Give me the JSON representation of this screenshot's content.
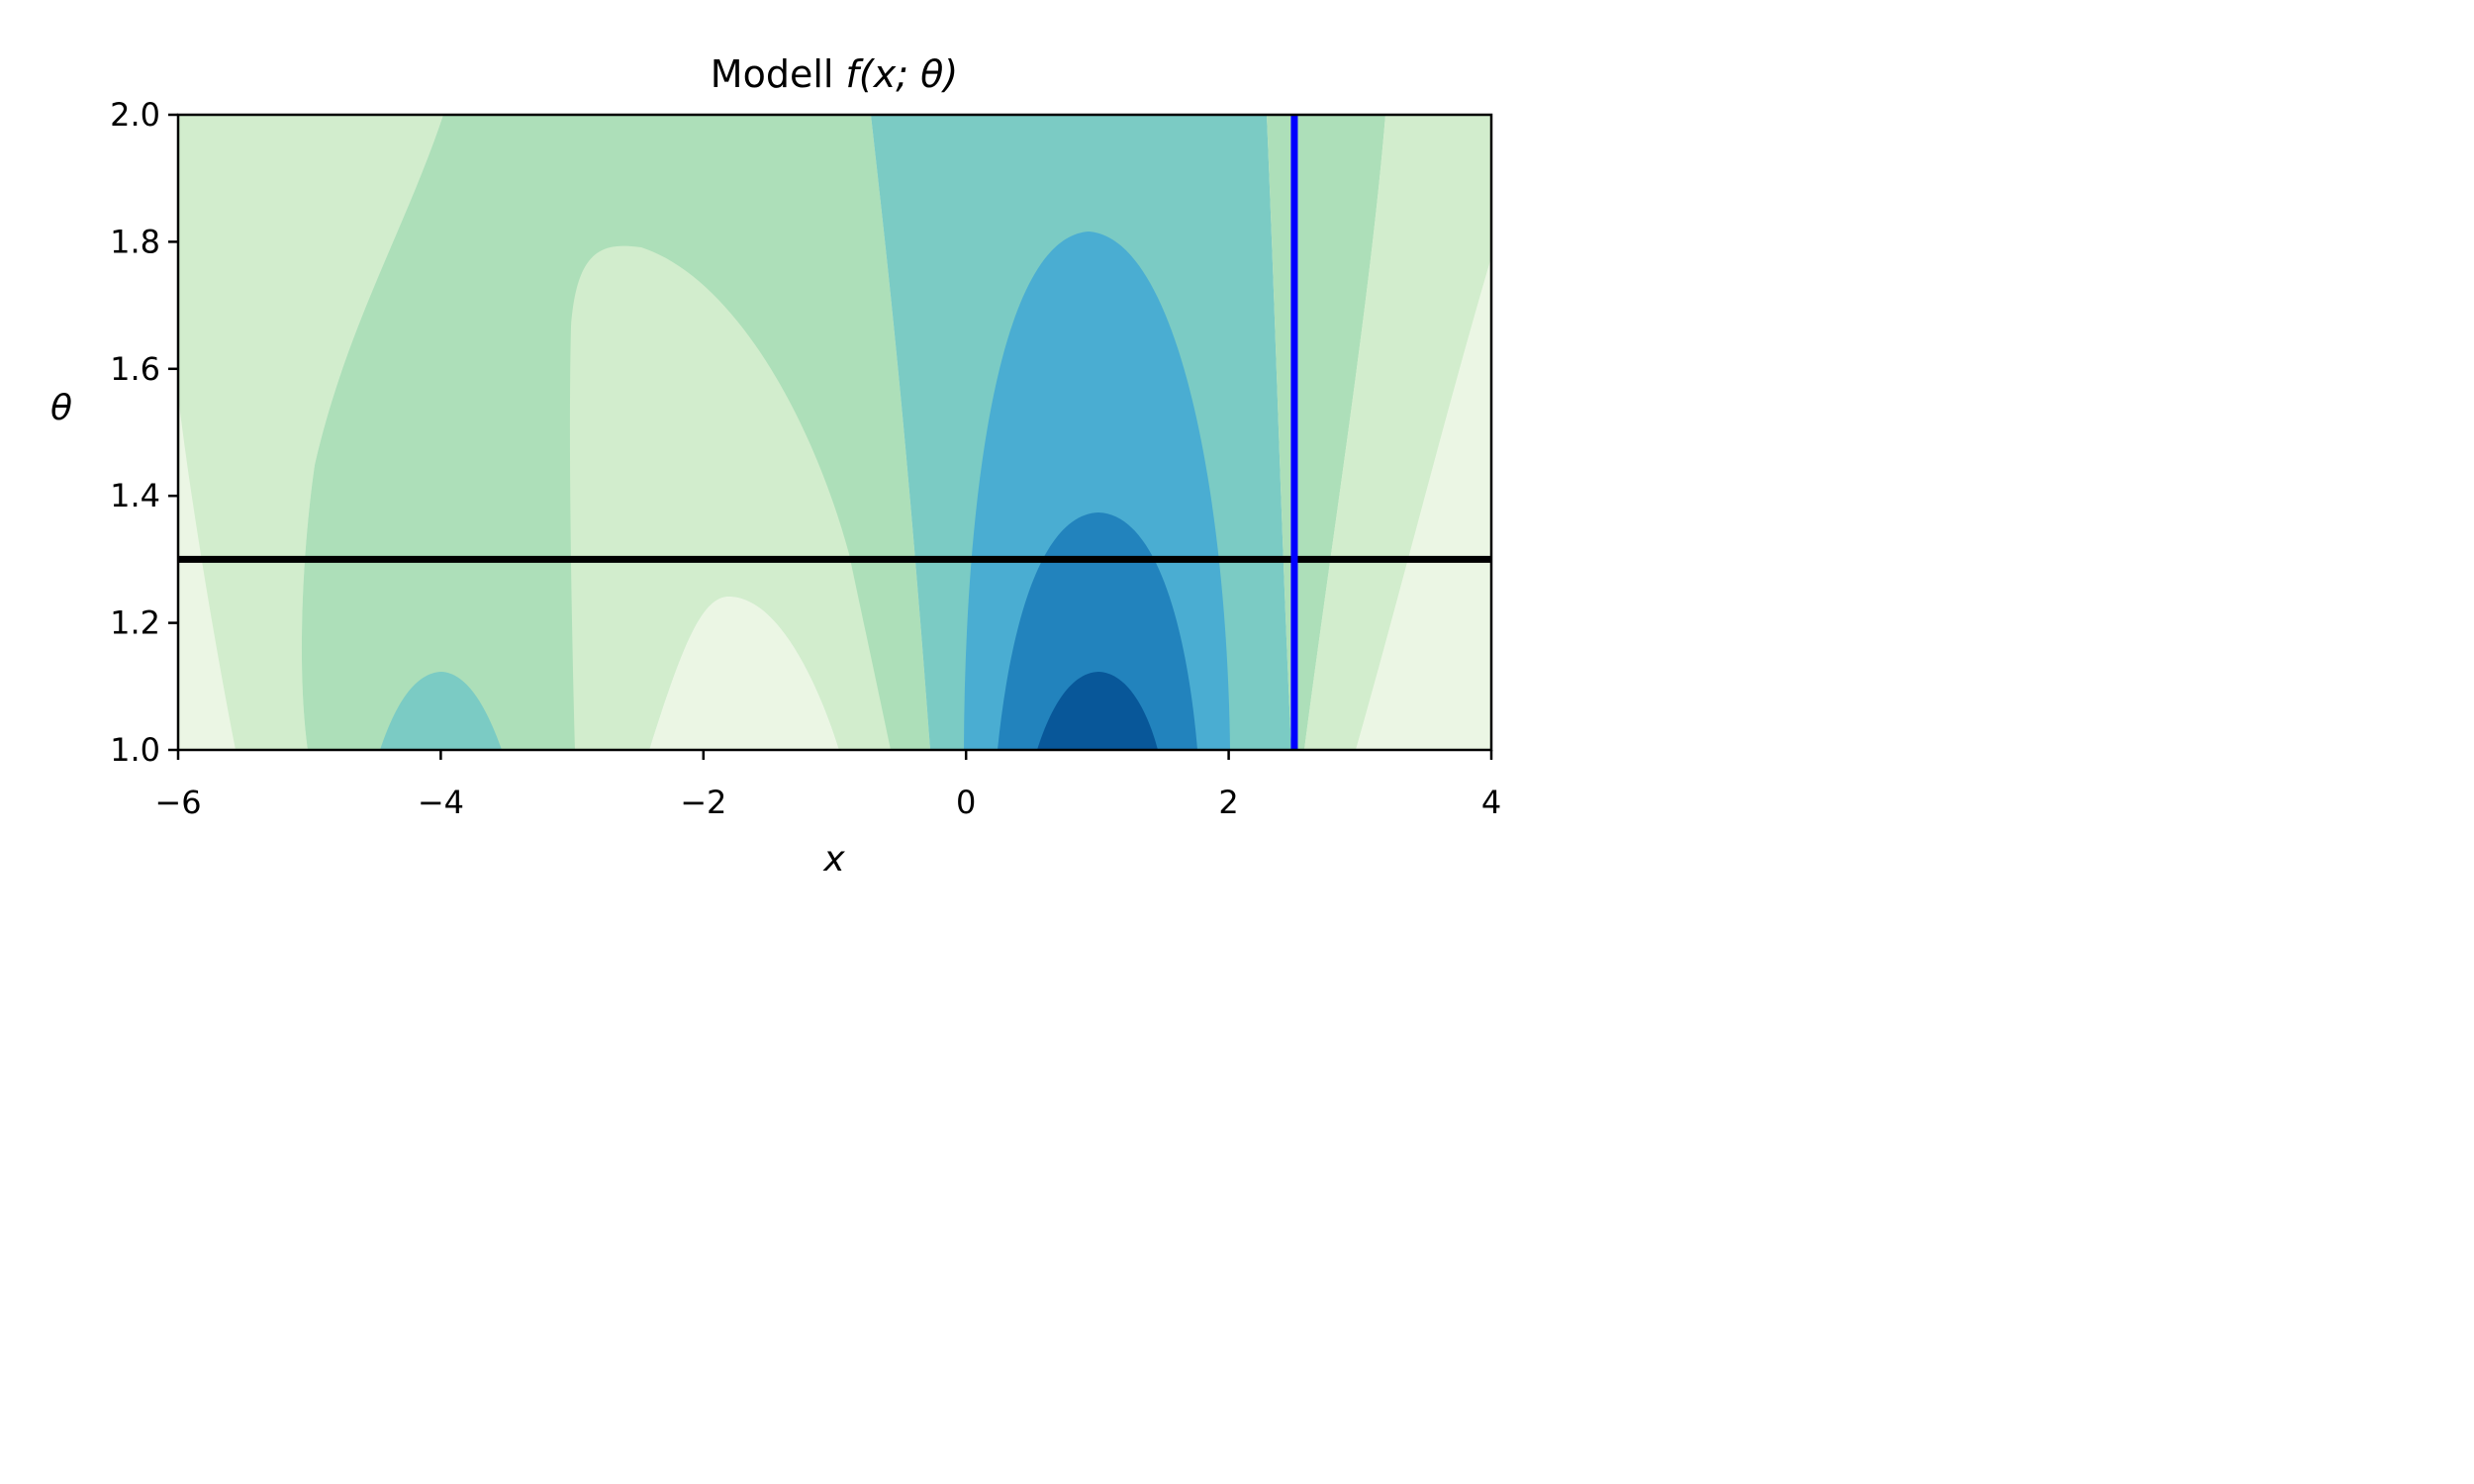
{
  "chart_data": {
    "type": "heatmap",
    "subtype": "filled-contour",
    "title": {
      "prefix": "Modell ",
      "math": "f(x; θ)"
    },
    "xlabel": "x",
    "ylabel": "θ",
    "xlim": [
      -6,
      4
    ],
    "ylim": [
      1.0,
      2.0
    ],
    "xticks": [
      {
        "value": -6,
        "label": "−6"
      },
      {
        "value": -4,
        "label": "−4"
      },
      {
        "value": -2,
        "label": "−2"
      },
      {
        "value": 0,
        "label": "0"
      },
      {
        "value": 2,
        "label": "2"
      },
      {
        "value": 4,
        "label": "4"
      }
    ],
    "yticks": [
      {
        "value": 1.0,
        "label": "1.0"
      },
      {
        "value": 1.2,
        "label": "1.2"
      },
      {
        "value": 1.4,
        "label": "1.4"
      },
      {
        "value": 1.6,
        "label": "1.6"
      },
      {
        "value": 1.8,
        "label": "1.8"
      },
      {
        "value": 2.0,
        "label": "2.0"
      }
    ],
    "colormap": "GnBu",
    "levels": [
      "#ebf6e4",
      "#d2edcd",
      "#addfb9",
      "#7bcbc4",
      "#4aadd2",
      "#2283bd",
      "#085799"
    ],
    "reference_lines": [
      {
        "orientation": "horizontal",
        "value": 1.3,
        "color": "#000000"
      },
      {
        "orientation": "vertical",
        "value": 2.5,
        "color": "#0000ff"
      }
    ],
    "grid": false
  }
}
